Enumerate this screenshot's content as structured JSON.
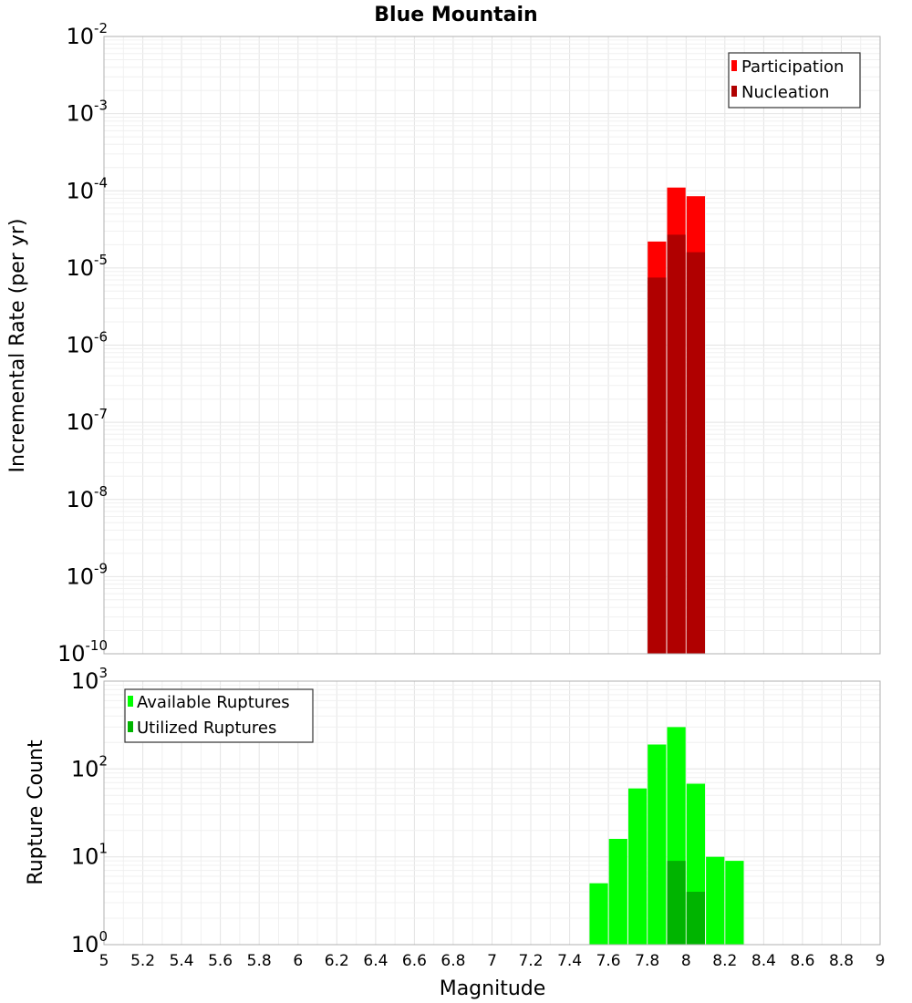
{
  "colors": {
    "participation": "#ff0000",
    "nucleation": "#b00000",
    "available": "#00ff00",
    "utilized": "#00b400",
    "grid_major": "#e4e4e4",
    "grid_minor": "#f0f0f0",
    "frame": "#b0b0b0"
  },
  "chart_data": [
    {
      "type": "bar",
      "title": "Blue Mountain",
      "xlabel": "Magnitude",
      "ylabel": "Incremental Rate (per yr)",
      "yscale": "log",
      "xlim": [
        5,
        9
      ],
      "ylim": [
        1e-10,
        0.01
      ],
      "y_tick_exponents": [
        "-10",
        "-9",
        "-8",
        "-7",
        "-6",
        "-5",
        "-4",
        "-3",
        "-2"
      ],
      "legend": {
        "position": "top-right",
        "entries": [
          "Participation",
          "Nucleation"
        ]
      },
      "bar_width": 0.095,
      "series": [
        {
          "name": "Participation",
          "x": [
            7.85,
            7.95,
            8.05
          ],
          "values": [
            2.2e-05,
            0.00011,
            8.5e-05
          ]
        },
        {
          "name": "Nucleation",
          "x": [
            7.85,
            7.95,
            8.05
          ],
          "values": [
            7.5e-06,
            2.7e-05,
            1.6e-05
          ]
        }
      ]
    },
    {
      "type": "bar",
      "xlabel": "Magnitude",
      "ylabel": "Rupture Count",
      "yscale": "log",
      "xlim": [
        5,
        9
      ],
      "ylim": [
        1,
        1000
      ],
      "y_tick_exponents": [
        "0",
        "1",
        "2",
        "3"
      ],
      "x_tick_labels": [
        "5",
        "5.2",
        "5.4",
        "5.6",
        "5.8",
        "6",
        "6.2",
        "6.4",
        "6.6",
        "6.8",
        "7",
        "7.2",
        "7.4",
        "7.6",
        "7.8",
        "8",
        "8.2",
        "8.4",
        "8.6",
        "8.8",
        "9"
      ],
      "legend": {
        "position": "top-left",
        "entries": [
          "Available Ruptures",
          "Utilized Ruptures"
        ]
      },
      "bar_width": 0.095,
      "series": [
        {
          "name": "Available Ruptures",
          "x": [
            7.35,
            7.55,
            7.65,
            7.75,
            7.85,
            7.95,
            8.05,
            8.15,
            8.25
          ],
          "values": [
            1,
            5,
            16,
            60,
            190,
            300,
            68,
            10,
            9
          ]
        },
        {
          "name": "Utilized Ruptures",
          "x": [
            7.85,
            7.95,
            8.05
          ],
          "values": [
            1,
            9,
            4
          ]
        }
      ]
    }
  ]
}
